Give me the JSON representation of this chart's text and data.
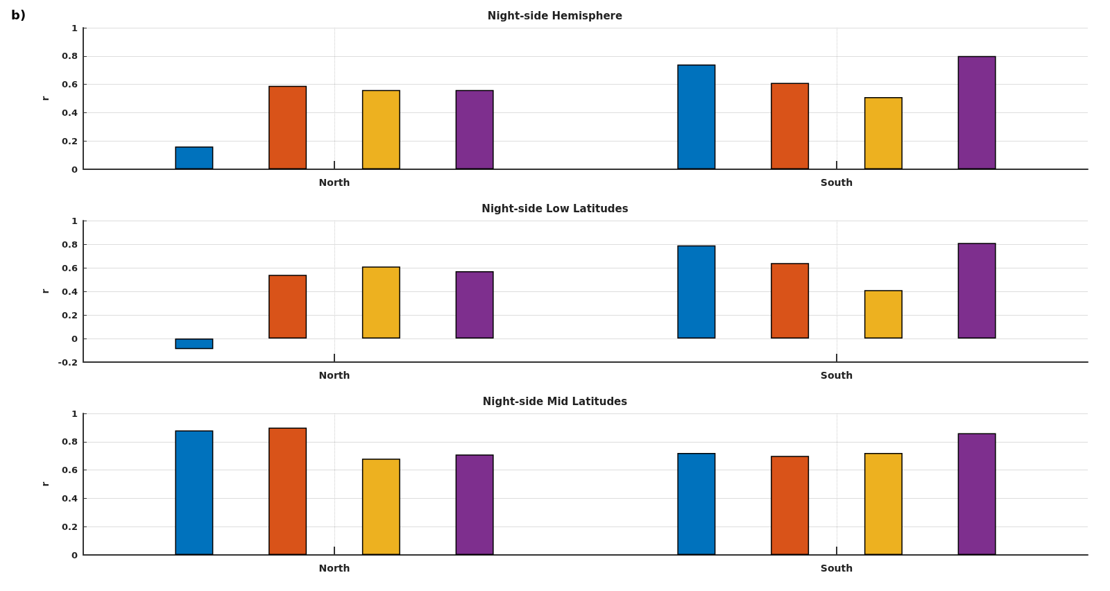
{
  "chart_data": [
    {
      "type": "bar",
      "title": "Night-side Hemisphere",
      "ylabel": "r",
      "annotations": [
        "b)"
      ],
      "categories": [
        "North",
        "South"
      ],
      "series": [
        {
          "color": "#0072bd",
          "values": [
            0.16,
            0.74
          ]
        },
        {
          "color": "#d95319",
          "values": [
            0.59,
            0.61
          ]
        },
        {
          "color": "#edb120",
          "values": [
            0.56,
            0.51
          ]
        },
        {
          "color": "#7e2f8e",
          "values": [
            0.56,
            0.8
          ]
        }
      ],
      "ylim": [
        0,
        1
      ],
      "yticks": [
        0,
        0.2,
        0.4,
        0.6,
        0.8,
        1
      ],
      "grid": true
    },
    {
      "type": "bar",
      "title": "Night-side Low Latitudes",
      "ylabel": "r",
      "categories": [
        "North",
        "South"
      ],
      "series": [
        {
          "color": "#0072bd",
          "values": [
            -0.09,
            0.79
          ]
        },
        {
          "color": "#d95319",
          "values": [
            0.54,
            0.64
          ]
        },
        {
          "color": "#edb120",
          "values": [
            0.61,
            0.41
          ]
        },
        {
          "color": "#7e2f8e",
          "values": [
            0.57,
            0.81
          ]
        }
      ],
      "ylim": [
        -0.2,
        1
      ],
      "yticks": [
        -0.2,
        0,
        0.2,
        0.4,
        0.6,
        0.8,
        1
      ],
      "grid": true
    },
    {
      "type": "bar",
      "title": "Night-side Mid Latitudes",
      "ylabel": "r",
      "categories": [
        "North",
        "South"
      ],
      "series": [
        {
          "color": "#0072bd",
          "values": [
            0.88,
            0.72
          ]
        },
        {
          "color": "#d95319",
          "values": [
            0.9,
            0.7
          ]
        },
        {
          "color": "#edb120",
          "values": [
            0.68,
            0.72
          ]
        },
        {
          "color": "#7e2f8e",
          "values": [
            0.71,
            0.86
          ]
        }
      ],
      "ylim": [
        0,
        1
      ],
      "yticks": [
        0,
        0.2,
        0.4,
        0.6,
        0.8,
        1
      ],
      "grid": true
    }
  ]
}
